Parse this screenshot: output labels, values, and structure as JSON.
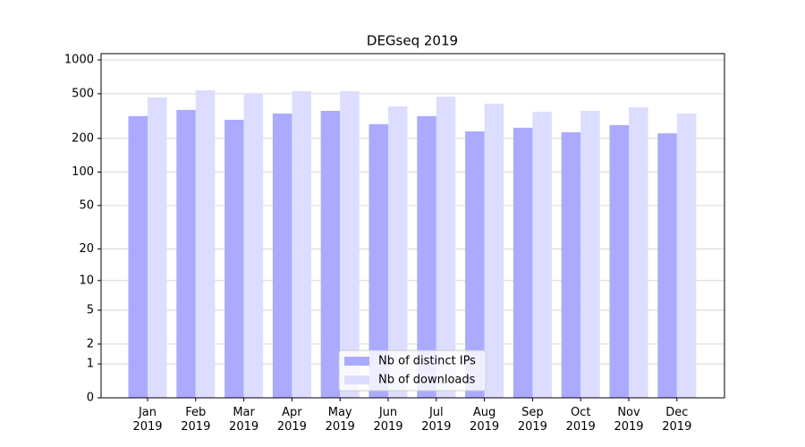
{
  "chart_data": {
    "type": "bar",
    "title": "DEGseq 2019",
    "categories": [
      "Jan\n2019",
      "Feb\n2019",
      "Mar\n2019",
      "Apr\n2019",
      "May\n2019",
      "Jun\n2019",
      "Jul\n2019",
      "Aug\n2019",
      "Sep\n2019",
      "Oct\n2019",
      "Nov\n2019",
      "Dec\n2019"
    ],
    "series": [
      {
        "name": "Nb of distinct IPs",
        "color": "#aaaaff",
        "values": [
          316,
          359,
          293,
          333,
          352,
          268,
          316,
          231,
          249,
          227,
          263,
          222
        ]
      },
      {
        "name": "Nb of downloads",
        "color": "#ddddff",
        "values": [
          463,
          537,
          499,
          527,
          527,
          386,
          472,
          408,
          346,
          352,
          379,
          333
        ]
      }
    ],
    "yscale": "log1p",
    "ylim": [
      0,
      1136
    ],
    "yticks": [
      0,
      1,
      2,
      5,
      10,
      20,
      50,
      100,
      200,
      500,
      1000
    ],
    "grid": true,
    "legend": "lower center"
  }
}
